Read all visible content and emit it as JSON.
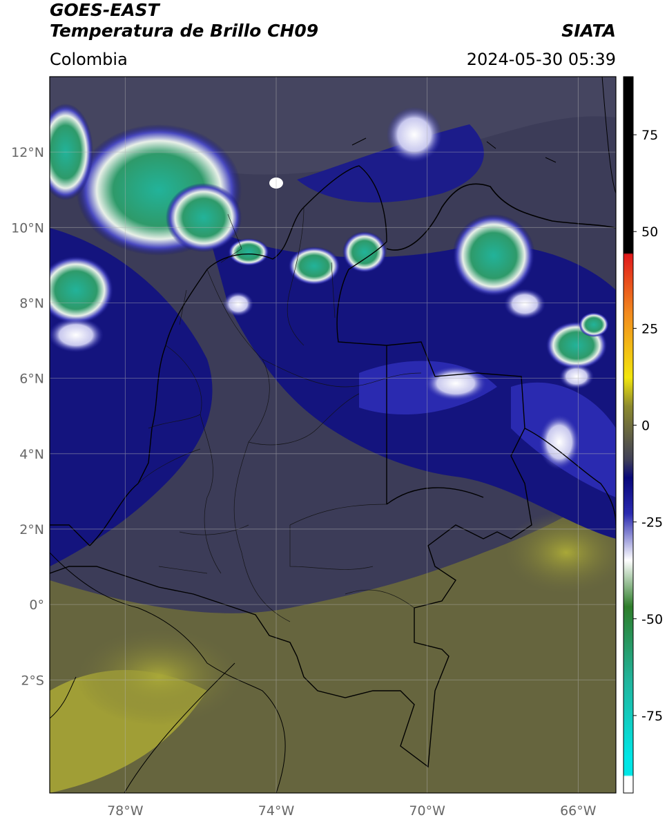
{
  "header": {
    "satellite": "GOES-EAST",
    "product": "Temperatura de Brillo CH09",
    "region": "Colombia",
    "source": "SIATA",
    "datetime": "2024-05-30 05:39"
  },
  "map": {
    "lon_range": [
      -80,
      -65
    ],
    "lat_range": [
      -5,
      14
    ],
    "lat_ticks": [
      {
        "value": 12,
        "label": "12°N"
      },
      {
        "value": 10,
        "label": "10°N"
      },
      {
        "value": 8,
        "label": "8°N"
      },
      {
        "value": 6,
        "label": "6°N"
      },
      {
        "value": 4,
        "label": "4°N"
      },
      {
        "value": 2,
        "label": "2°N"
      },
      {
        "value": 0,
        "label": "0°"
      },
      {
        "value": -2,
        "label": "2°S"
      }
    ],
    "lon_ticks": [
      {
        "value": -78,
        "label": "78°W"
      },
      {
        "value": -74,
        "label": "74°W"
      },
      {
        "value": -70,
        "label": "70°W"
      },
      {
        "value": -66,
        "label": "66°W"
      }
    ],
    "grid": true
  },
  "colorbar": {
    "range": [
      -95,
      90
    ],
    "ticks": [
      {
        "value": 75,
        "label": "75"
      },
      {
        "value": 50,
        "label": "50"
      },
      {
        "value": 25,
        "label": "25"
      },
      {
        "value": 0,
        "label": "0"
      },
      {
        "value": -25,
        "label": "-25"
      },
      {
        "value": -50,
        "label": "-50"
      },
      {
        "value": -75,
        "label": "-75"
      }
    ],
    "colors": {
      "warm_black": "#000000",
      "red": "#e0191b",
      "orange": "#f28a1e",
      "yellow": "#f2e60d",
      "olive": "#8d8a2e",
      "grey": "#3f3f57",
      "navy": "#08087a",
      "blue": "#2a2ab0",
      "white": "#ffffff",
      "green": "#2e7d2a",
      "teal": "#22b39a",
      "cyan": "#00e6e6"
    }
  }
}
